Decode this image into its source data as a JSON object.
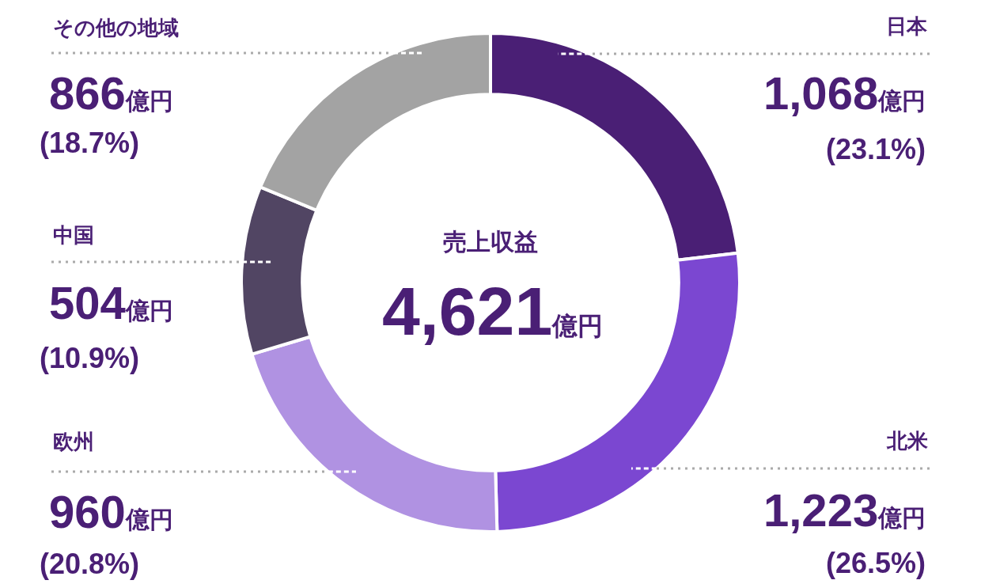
{
  "chart_data": {
    "type": "donut",
    "title": "売上収益",
    "categories": [
      "日本",
      "北米",
      "欧州",
      "中国",
      "その他の地域"
    ],
    "values": [
      1068,
      1223,
      960,
      504,
      866
    ],
    "colors": [
      "#4a1f75",
      "#7b47d1",
      "#b092e2",
      "#514563",
      "#a3a3a3"
    ],
    "value_labels": [
      "1,068億円\n(23.1%)",
      "1,223億円\n(26.5%)",
      "960億円\n(20.8%)",
      "504億円\n(10.9%)",
      "866億円\n(18.7%)"
    ],
    "annotations": [
      "4,621億円"
    ]
  }
}
